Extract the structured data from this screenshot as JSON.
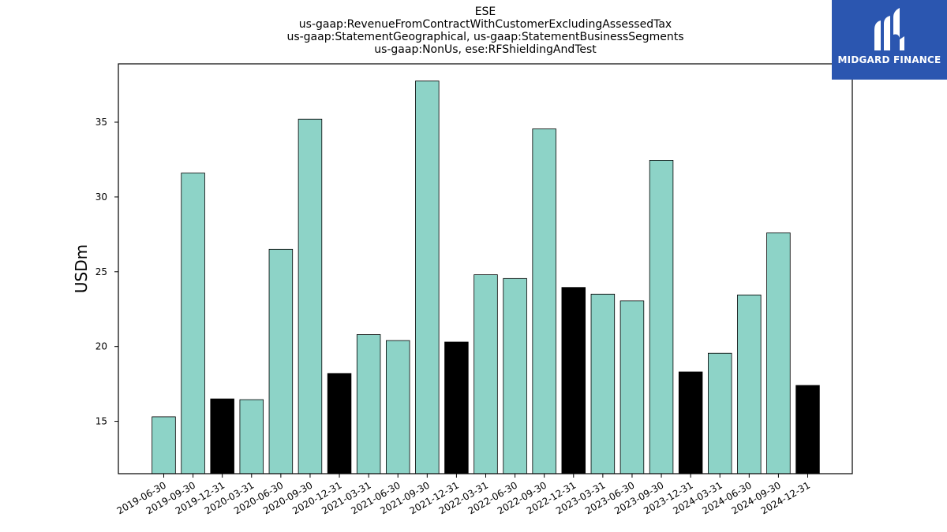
{
  "chart_data": {
    "type": "bar",
    "title": "ESE",
    "subtitle_lines": [
      "us-gaap:RevenueFromContractWithCustomerExcludingAssessedTax",
      "us-gaap:StatementGeographical, us-gaap:StatementBusinessSegments",
      "us-gaap:NonUs, ese:RFShieldingAndTest"
    ],
    "ylabel": "USDm",
    "xlabel": "",
    "ylim": [
      11.5,
      38.9
    ],
    "yticks": [
      15,
      20,
      25,
      30,
      35
    ],
    "grid": false,
    "categories": [
      "2019-06-30",
      "2019-09-30",
      "2019-12-31",
      "2020-03-31",
      "2020-06-30",
      "2020-09-30",
      "2020-12-31",
      "2021-03-31",
      "2021-06-30",
      "2021-09-30",
      "2021-12-31",
      "2022-03-31",
      "2022-06-30",
      "2022-09-30",
      "2022-12-31",
      "2023-03-31",
      "2023-06-30",
      "2023-09-30",
      "2023-12-31",
      "2024-03-31",
      "2024-06-30",
      "2024-09-30",
      "2024-12-31"
    ],
    "values": [
      15.3,
      31.6,
      16.5,
      16.45,
      26.5,
      35.2,
      18.2,
      20.8,
      20.4,
      37.75,
      20.3,
      24.8,
      24.55,
      34.55,
      23.95,
      23.5,
      23.05,
      32.45,
      18.3,
      19.55,
      23.45,
      27.6,
      17.4
    ],
    "colors": {
      "quarter": "#8dd3c7",
      "year_end": "#000000",
      "edge": "#000000"
    }
  },
  "logo": {
    "brand_text": "MIDGARD FINANCE",
    "background": "#2b56b0"
  }
}
